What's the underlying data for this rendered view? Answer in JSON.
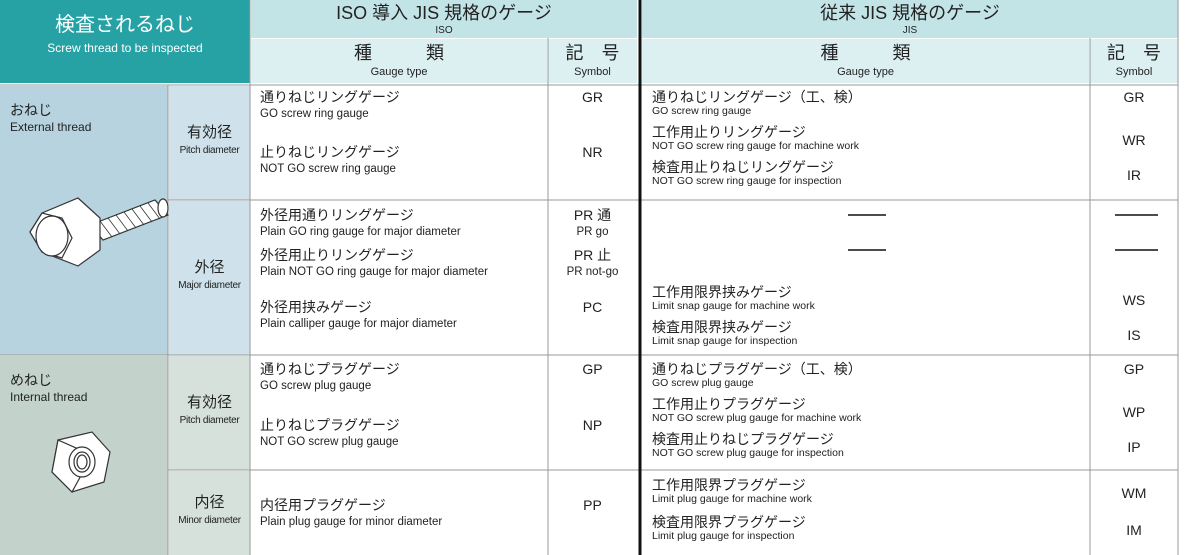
{
  "header": {
    "screw_title": "検査されるねじ",
    "screw_subtitle": "Screw thread to be inspected"
  },
  "iso": {
    "title": "ISO 導入 JIS 規格のゲージ",
    "subtitle": "ISO",
    "type_ja": "種　　　類",
    "type_en": "Gauge type",
    "symbol_ja": "記　号",
    "symbol_en": "Symbol"
  },
  "jis": {
    "title": "従来 JIS 規格のゲージ",
    "subtitle": "JIS",
    "type_ja": "種　　　類",
    "type_en": "Gauge type",
    "symbol_ja": "記　号",
    "symbol_en": "Symbol"
  },
  "sections": [
    {
      "label_ja": "おねじ",
      "label_en": "External thread",
      "groups": [
        {
          "label_ja": "有効径",
          "label_en": "Pitch diameter",
          "iso": [
            {
              "ja": "通りねじリングゲージ",
              "en": "GO screw ring gauge",
              "symbol": "GR"
            },
            {
              "ja": "止りねじリングゲージ",
              "en": "NOT GO screw ring gauge",
              "symbol": "NR"
            }
          ],
          "jis": [
            {
              "ja": "通りねじリングゲージ（工、検）",
              "en": "GO screw ring gauge",
              "symbol": "GR"
            },
            {
              "ja": "工作用止りリングゲージ",
              "en": "NOT GO screw ring gauge for machine work",
              "symbol": "WR"
            },
            {
              "ja": "検査用止りねじリングゲージ",
              "en": "NOT GO screw ring gauge for inspection",
              "symbol": "IR"
            }
          ]
        },
        {
          "label_ja": "外径",
          "label_en": "Major diameter",
          "iso": [
            {
              "ja": "外径用通りリングゲージ",
              "en": "Plain GO ring gauge for major diameter",
              "symbol": "PR 通",
              "symbol_en": "PR go"
            },
            {
              "ja": "外径用止りリングゲージ",
              "en": "Plain NOT GO ring gauge for major diameter",
              "symbol": "PR 止",
              "symbol_en": "PR not-go"
            },
            {
              "ja": "外径用挟みゲージ",
              "en": "Plain calliper gauge for major diameter",
              "symbol": "PC"
            }
          ],
          "jis": [
            {
              "ja": "工作用限界挟みゲージ",
              "en": "Limit snap gauge for machine work",
              "symbol": "WS"
            },
            {
              "ja": "検査用限界挟みゲージ",
              "en": "Limit snap gauge for inspection",
              "symbol": "IS"
            }
          ]
        }
      ]
    },
    {
      "label_ja": "めねじ",
      "label_en": "Internal thread",
      "groups": [
        {
          "label_ja": "有効径",
          "label_en": "Pitch diameter",
          "iso": [
            {
              "ja": "通りねじプラグゲージ",
              "en": "GO screw plug gauge",
              "symbol": "GP"
            },
            {
              "ja": "止りねじプラグゲージ",
              "en": "NOT GO screw plug gauge",
              "symbol": "NP"
            }
          ],
          "jis": [
            {
              "ja": "通りねじプラグゲージ（工、検）",
              "en": "GO screw plug gauge",
              "symbol": "GP"
            },
            {
              "ja": "工作用止りプラグゲージ",
              "en": "NOT GO screw plug gauge for machine work",
              "symbol": "WP"
            },
            {
              "ja": "検査用止りねじプラグゲージ",
              "en": "NOT GO screw plug gauge for inspection",
              "symbol": "IP"
            }
          ]
        },
        {
          "label_ja": "内径",
          "label_en": "Minor diameter",
          "iso": [
            {
              "ja": "内径用プラグゲージ",
              "en": "Plain plug gauge for minor diameter",
              "symbol": "PP"
            }
          ],
          "jis": [
            {
              "ja": "工作用限界プラグゲージ",
              "en": "Limit plug gauge for machine work",
              "symbol": "WM"
            },
            {
              "ja": "検査用限界プラグゲージ",
              "en": "Limit plug gauge for inspection",
              "symbol": "IM"
            }
          ]
        }
      ]
    }
  ]
}
